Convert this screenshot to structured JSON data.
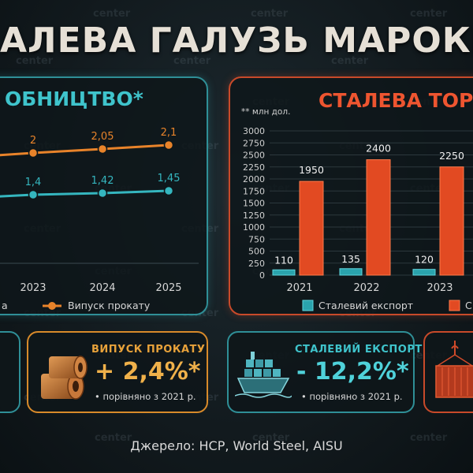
{
  "title": "АЛЕВА ГАЛУЗЬ МАРОККО",
  "watermark": "center",
  "left_panel": {
    "heading": "ОБНИЦТВО*",
    "legend": {
      "series1": "а",
      "series2": "Випуск прокату"
    }
  },
  "right_panel": {
    "heading": "СТАЛЕВА ТОРГ",
    "unit_note": "** млн дол.",
    "legend": {
      "series1": "Сталевий експорт",
      "series2": "С"
    }
  },
  "chart_data": [
    {
      "type": "line",
      "x": [
        "2023",
        "2024",
        "2025"
      ],
      "series": [
        {
          "name": "Випуск прокату",
          "values": [
            2,
            2.05,
            2.1
          ],
          "labels": [
            "2",
            "2,05",
            "2,1"
          ],
          "color": "#e8832a"
        },
        {
          "name": "",
          "values": [
            1.4,
            1.42,
            1.45
          ],
          "labels": [
            "1,4",
            "1,42",
            "1,45"
          ],
          "color": "#35b6bf"
        }
      ]
    },
    {
      "type": "bar",
      "categories": [
        "2021",
        "2022",
        "2023"
      ],
      "ylim": [
        0,
        3000
      ],
      "yticks": [
        "0",
        "250",
        "500",
        "750",
        "1000",
        "1250",
        "1500",
        "1750",
        "2000",
        "2250",
        "2500",
        "2750",
        "3000"
      ],
      "series": [
        {
          "name": "Сталевий експорт",
          "values": [
            110,
            135,
            120
          ],
          "labels": [
            "110",
            "135",
            "120"
          ],
          "color": "#2aa3ad"
        },
        {
          "name": "",
          "values": [
            1950,
            2400,
            2250
          ],
          "labels": [
            "1950",
            "2400",
            "2250"
          ],
          "color": "#e24a22"
        }
      ]
    }
  ],
  "cards": [
    {
      "title": "",
      "value": "",
      "note": ""
    },
    {
      "title": "ВИПУСК ПРОКАТУ",
      "value": "+ 2,4%*",
      "note": "порівняно з 2021 р.",
      "icon": "steel-coil-icon",
      "color": "#e8a23a"
    },
    {
      "title": "СТАЛЕВИЙ ЕКСПОРТ",
      "value": "- 12,2%*",
      "note": "порівняно з 2021 р.",
      "icon": "cargo-ship-icon",
      "color": "#3fc4cc"
    },
    {
      "title": "",
      "value": "",
      "note": "",
      "icon": "container-crane-icon",
      "color": "#e24a22"
    }
  ],
  "source": "Джерело: HCP, World Steel, AISU"
}
